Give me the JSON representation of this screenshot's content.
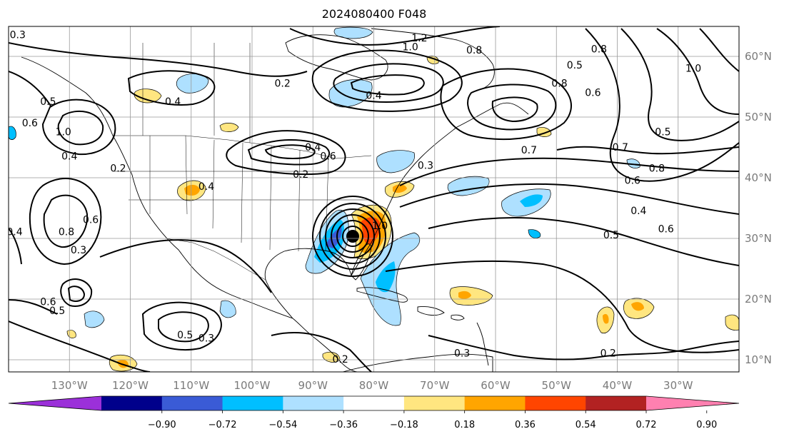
{
  "title": "2024080400 F048",
  "map": {
    "lon_range": [
      -140,
      -20
    ],
    "lat_range": [
      8,
      65
    ],
    "lon_ticks": [
      "130°W",
      "120°W",
      "110°W",
      "100°W",
      "90°W",
      "80°W",
      "70°W",
      "60°W",
      "50°W",
      "40°W",
      "30°W"
    ],
    "lat_ticks": [
      "10°N",
      "20°N",
      "30°N",
      "40°N",
      "50°N",
      "60°N"
    ],
    "grid": true,
    "storm_center": {
      "lon": -84.5,
      "lat": 30.5
    }
  },
  "colorbar": {
    "ticks": [
      "−0.90",
      "−0.72",
      "−0.54",
      "−0.36",
      "−0.18",
      "0.18",
      "0.36",
      "0.54",
      "0.72",
      "0.90"
    ],
    "colors": [
      "#9b30d9",
      "#00008b",
      "#3a5bd6",
      "#00bfff",
      "#aee0ff",
      "#ffffff",
      "#ffe680",
      "#ffa500",
      "#ff4500",
      "#b22222",
      "#ff80b0"
    ],
    "extend": "both"
  },
  "contour_labels": [
    {
      "text": "0.3",
      "lon": -138.5,
      "lat": 63.5
    },
    {
      "text": "1.2",
      "lon": -72.5,
      "lat": 63.0
    },
    {
      "text": "1.0",
      "lon": -74.0,
      "lat": 61.5
    },
    {
      "text": "0.8",
      "lon": -63.5,
      "lat": 61.0
    },
    {
      "text": "0.8",
      "lon": -43.0,
      "lat": 61.2
    },
    {
      "text": "0.5",
      "lon": -47.0,
      "lat": 58.5
    },
    {
      "text": "1.0",
      "lon": -27.5,
      "lat": 58.0
    },
    {
      "text": "0.8",
      "lon": -49.5,
      "lat": 55.5
    },
    {
      "text": "0.6",
      "lon": -44.0,
      "lat": 54.0
    },
    {
      "text": "0.2",
      "lon": -95.0,
      "lat": 55.5
    },
    {
      "text": "0.4",
      "lon": -80.0,
      "lat": 53.5
    },
    {
      "text": "0.4",
      "lon": -113.0,
      "lat": 52.5
    },
    {
      "text": "0.5",
      "lon": -133.5,
      "lat": 52.5
    },
    {
      "text": "0.6",
      "lon": -136.5,
      "lat": 49.0
    },
    {
      "text": "1.0",
      "lon": -131.0,
      "lat": 47.5
    },
    {
      "text": "0.5",
      "lon": -32.5,
      "lat": 47.5
    },
    {
      "text": "0.7",
      "lon": -54.5,
      "lat": 44.5
    },
    {
      "text": "0.7",
      "lon": -39.5,
      "lat": 45.0
    },
    {
      "text": "0.4",
      "lon": -90.0,
      "lat": 45.0
    },
    {
      "text": "0.6",
      "lon": -87.5,
      "lat": 43.5
    },
    {
      "text": "0.4",
      "lon": -130.0,
      "lat": 43.5
    },
    {
      "text": "0.2",
      "lon": -122.0,
      "lat": 41.5
    },
    {
      "text": "0.2",
      "lon": -92.0,
      "lat": 40.5
    },
    {
      "text": "0.3",
      "lon": -71.5,
      "lat": 42.0
    },
    {
      "text": "0.8",
      "lon": -33.5,
      "lat": 41.5
    },
    {
      "text": "0.4",
      "lon": -107.5,
      "lat": 38.5
    },
    {
      "text": "0.6",
      "lon": -37.5,
      "lat": 39.5
    },
    {
      "text": "0.4",
      "lon": -36.5,
      "lat": 34.5
    },
    {
      "text": "0.6",
      "lon": -126.5,
      "lat": 33.0
    },
    {
      "text": "0.8",
      "lon": -130.5,
      "lat": 31.0
    },
    {
      "text": "0.4",
      "lon": -139.0,
      "lat": 31.0
    },
    {
      "text": "1.0",
      "lon": -79.0,
      "lat": 32.0
    },
    {
      "text": "0.6",
      "lon": -32.0,
      "lat": 31.5
    },
    {
      "text": "0.5",
      "lon": -41.0,
      "lat": 30.5
    },
    {
      "text": "0.3",
      "lon": -128.5,
      "lat": 28.0
    },
    {
      "text": "0.6",
      "lon": -133.5,
      "lat": 19.5
    },
    {
      "text": "0.5",
      "lon": -132.0,
      "lat": 18.0
    },
    {
      "text": "0.5",
      "lon": -111.0,
      "lat": 14.0
    },
    {
      "text": "0.3",
      "lon": -107.5,
      "lat": 13.5
    },
    {
      "text": "0.2",
      "lon": -85.5,
      "lat": 10.0
    },
    {
      "text": "0.3",
      "lon": -65.5,
      "lat": 11.0
    },
    {
      "text": "0.2",
      "lon": -41.5,
      "lat": 11.0
    }
  ]
}
